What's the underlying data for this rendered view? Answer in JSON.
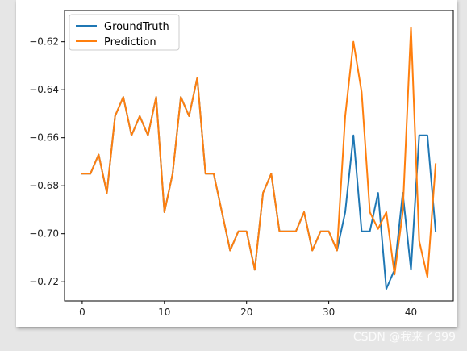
{
  "watermark": "CSDN @我来了999",
  "chart_data": {
    "type": "line",
    "x": [
      0,
      1,
      2,
      3,
      4,
      5,
      6,
      7,
      8,
      9,
      10,
      11,
      12,
      13,
      14,
      15,
      16,
      17,
      18,
      19,
      20,
      21,
      22,
      23,
      24,
      25,
      26,
      27,
      28,
      29,
      30,
      31,
      32,
      33,
      34,
      35,
      36,
      37,
      38,
      39,
      40,
      41,
      42,
      43
    ],
    "xlim": [
      -2.15,
      45.15
    ],
    "ylim": [
      -0.728,
      -0.607
    ],
    "xticks": [
      0,
      10,
      20,
      30,
      40
    ],
    "xtick_labels": [
      "0",
      "10",
      "20",
      "30",
      "40"
    ],
    "yticks": [
      -0.62,
      -0.64,
      -0.66,
      -0.68,
      -0.7,
      -0.72
    ],
    "ytick_labels": [
      "−0.62",
      "−0.64",
      "−0.66",
      "−0.68",
      "−0.70",
      "−0.72"
    ],
    "legend_position": "top-left",
    "series": [
      {
        "name": "GroundTruth",
        "color": "#1f77b4",
        "values": [
          -0.675,
          -0.675,
          -0.667,
          -0.683,
          -0.651,
          -0.643,
          -0.659,
          -0.651,
          -0.659,
          -0.643,
          -0.691,
          -0.675,
          -0.643,
          -0.651,
          -0.635,
          -0.675,
          -0.675,
          -0.691,
          -0.707,
          -0.699,
          -0.699,
          -0.715,
          -0.683,
          -0.675,
          -0.699,
          -0.699,
          -0.699,
          -0.691,
          -0.707,
          -0.699,
          -0.699,
          -0.707,
          -0.691,
          -0.659,
          -0.699,
          -0.699,
          -0.683,
          -0.723,
          -0.715,
          -0.683,
          -0.715,
          -0.659,
          -0.659,
          -0.699
        ]
      },
      {
        "name": "Prediction",
        "color": "#ff7f0e",
        "values": [
          -0.675,
          -0.675,
          -0.667,
          -0.683,
          -0.651,
          -0.643,
          -0.659,
          -0.651,
          -0.659,
          -0.643,
          -0.691,
          -0.675,
          -0.643,
          -0.651,
          -0.635,
          -0.675,
          -0.675,
          -0.691,
          -0.707,
          -0.699,
          -0.699,
          -0.715,
          -0.683,
          -0.675,
          -0.699,
          -0.699,
          -0.699,
          -0.691,
          -0.707,
          -0.699,
          -0.699,
          -0.707,
          -0.651,
          -0.62,
          -0.641,
          -0.691,
          -0.698,
          -0.691,
          -0.717,
          -0.691,
          -0.614,
          -0.703,
          -0.718,
          -0.671
        ]
      }
    ]
  }
}
